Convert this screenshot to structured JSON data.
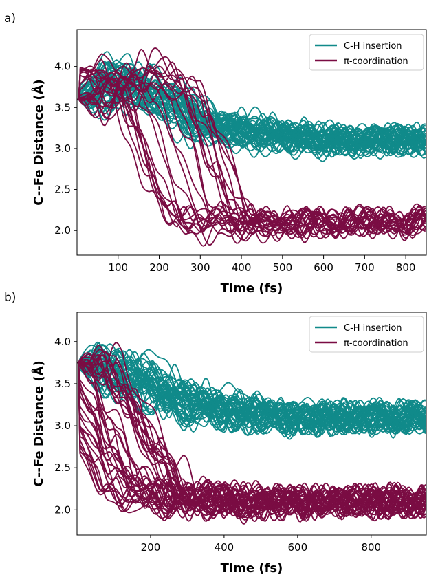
{
  "colors": {
    "ch_insertion": "#108a8a",
    "pi_coordination": "#7a0c43"
  },
  "chart_data": [
    {
      "type": "line",
      "panel_label": "a)",
      "xlabel": "Time (fs)",
      "ylabel": "C--Fe Distance (Å)",
      "xlim": [
        0,
        850
      ],
      "ylim": [
        1.7,
        4.45
      ],
      "xticks": [
        100,
        200,
        300,
        400,
        500,
        600,
        700,
        800
      ],
      "yticks": [
        2.0,
        2.5,
        3.0,
        3.5,
        4.0
      ],
      "legend": {
        "position": "top-right",
        "entries": [
          "C-H insertion",
          "π-coordination"
        ]
      },
      "series": [
        {
          "name": "C-H insertion",
          "trajectories": 45,
          "start": 3.6,
          "x": [
            0,
            100,
            200,
            300,
            400,
            500,
            600,
            700,
            850
          ],
          "y": [
            3.6,
            3.85,
            3.6,
            3.3,
            3.2,
            3.15,
            3.1,
            3.1,
            3.1
          ]
        },
        {
          "name": "π-coordination",
          "trajectories": 25,
          "start": 3.6,
          "x": [
            0,
            100,
            200,
            300,
            350,
            400,
            500,
            600,
            700,
            850
          ],
          "y": [
            3.6,
            4.0,
            3.7,
            2.4,
            2.05,
            2.1,
            2.1,
            2.1,
            2.1,
            2.1
          ]
        }
      ]
    },
    {
      "type": "line",
      "panel_label": "b)",
      "xlabel": "Time (fs)",
      "ylabel": "C--Fe Distance (Å)",
      "xlim": [
        0,
        950
      ],
      "ylim": [
        1.7,
        4.35
      ],
      "xticks": [
        200,
        400,
        600,
        800
      ],
      "yticks": [
        2.0,
        2.5,
        3.0,
        3.5,
        4.0
      ],
      "legend": {
        "position": "top-right",
        "entries": [
          "C-H insertion",
          "π-coordination"
        ]
      },
      "series": [
        {
          "name": "C-H insertion",
          "trajectories": 45,
          "start": 3.75,
          "x": [
            0,
            100,
            200,
            300,
            400,
            500,
            600,
            700,
            950
          ],
          "y": [
            3.75,
            3.7,
            3.5,
            3.3,
            3.2,
            3.15,
            3.1,
            3.1,
            3.1
          ]
        },
        {
          "name": "π-coordination",
          "trajectories": 40,
          "start": 3.75,
          "x": [
            0,
            100,
            200,
            300,
            400,
            500,
            600,
            700,
            950
          ],
          "y": [
            3.75,
            2.9,
            2.2,
            2.15,
            2.1,
            2.1,
            2.1,
            2.1,
            2.1
          ]
        }
      ]
    }
  ]
}
